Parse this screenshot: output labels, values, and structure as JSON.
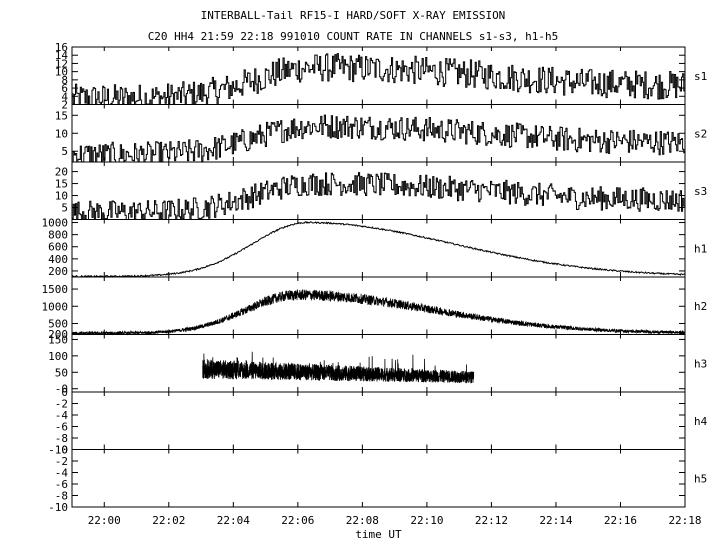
{
  "title": "INTERBALL-Tail RF15-I HARD/SOFT X-RAY EMISSION",
  "subtitle": "C20 HH4 21:59 22:18 991010  COUNT RATE IN CHANNELS s1-s3, h1-h5",
  "chart_data": {
    "type": "line",
    "xlabel": "time UT",
    "x_ticks": [
      "22:00",
      "22:02",
      "22:04",
      "22:06",
      "22:08",
      "22:10",
      "22:12",
      "22:14",
      "22:16",
      "22:18"
    ],
    "x_range_minutes": [
      -1.0,
      18.0
    ],
    "panels": [
      {
        "name": "s1",
        "ylim": [
          2,
          16
        ],
        "yticks": [
          "16",
          "14",
          "12",
          "10",
          "8",
          "6",
          "4",
          "2"
        ],
        "profile": {
          "base": 3.5,
          "peak": 11,
          "peak_time": 6.5,
          "rise_width": 1.8,
          "decay_width": 7,
          "noise": 3.5,
          "plateau": 7
        }
      },
      {
        "name": "s2",
        "ylim": [
          2,
          18
        ],
        "yticks": [
          "15",
          "10",
          "5"
        ],
        "profile": {
          "base": 4,
          "peak": 12,
          "peak_time": 6.5,
          "rise_width": 1.8,
          "decay_width": 7,
          "noise": 3.5,
          "plateau": 8
        }
      },
      {
        "name": "s3",
        "ylim": [
          0,
          24
        ],
        "yticks": [
          "20",
          "15",
          "10",
          "5"
        ],
        "profile": {
          "base": 3,
          "peak": 15,
          "peak_time": 6.5,
          "rise_width": 1.8,
          "decay_width": 7,
          "noise": 5,
          "plateau": 9
        }
      },
      {
        "name": "h1",
        "ylim": [
          100,
          1050
        ],
        "yticks": [
          "1000",
          "800",
          "600",
          "400",
          "200"
        ],
        "profile": {
          "base": 110,
          "peak": 1000,
          "peak_time": 6.3,
          "rise_width": 1.7,
          "decay_width": 4.5,
          "noise": 12
        }
      },
      {
        "name": "h2",
        "ylim": [
          180,
          1850
        ],
        "yticks": [
          "1500",
          "1000",
          "500",
          "200"
        ],
        "profile": {
          "base": 220,
          "peak": 1330,
          "peak_time": 6.0,
          "rise_width": 1.6,
          "decay_width": 4.2,
          "noise": 160
        }
      },
      {
        "name": "h3",
        "ylim": [
          -10,
          165
        ],
        "yticks": [
          "150",
          "100",
          "50",
          "-0"
        ],
        "profile": {
          "start": 3.05,
          "end": 11.45,
          "mid": 60,
          "mid_end": 35,
          "noise": 60
        }
      },
      {
        "name": "h4",
        "ylim": [
          -10,
          0
        ],
        "yticks": [
          "-10",
          "-8",
          "-6",
          "-4",
          "-2",
          "0"
        ]
      },
      {
        "name": "h5",
        "ylim": [
          -10,
          0
        ],
        "yticks": [
          "-10",
          "-8",
          "-6",
          "-4",
          "-2",
          "0"
        ]
      }
    ]
  }
}
